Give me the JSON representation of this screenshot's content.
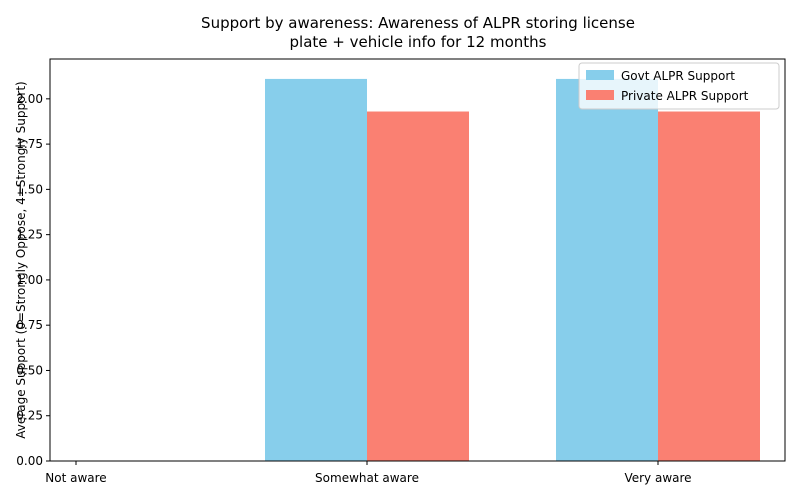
{
  "chart_data": {
    "type": "bar",
    "title_lines": [
      "Support by awareness: Awareness of ALPR storing license",
      "plate + vehicle info for 12 months"
    ],
    "xlabel": "",
    "ylabel": "Average Support (0=Strongly Oppose, 4=Strongly Support)",
    "categories": [
      "Not aware",
      "Somewhat aware",
      "Very aware"
    ],
    "series": [
      {
        "name": "Govt ALPR Support",
        "color": "#87ceeb",
        "values": [
          null,
          2.11,
          2.11
        ]
      },
      {
        "name": "Private ALPR Support",
        "color": "#fa8072",
        "values": [
          null,
          1.93,
          1.93
        ]
      }
    ],
    "ylim": [
      0,
      2.22
    ],
    "yticks": [
      0.0,
      0.25,
      0.5,
      0.75,
      1.0,
      1.25,
      1.5,
      1.75,
      2.0
    ],
    "ytick_labels": [
      "0.00",
      "0.25",
      "0.50",
      "0.75",
      "1.00",
      "1.25",
      "1.50",
      "1.75",
      "2.00"
    ],
    "grid": false,
    "legend_position": "top-right"
  }
}
